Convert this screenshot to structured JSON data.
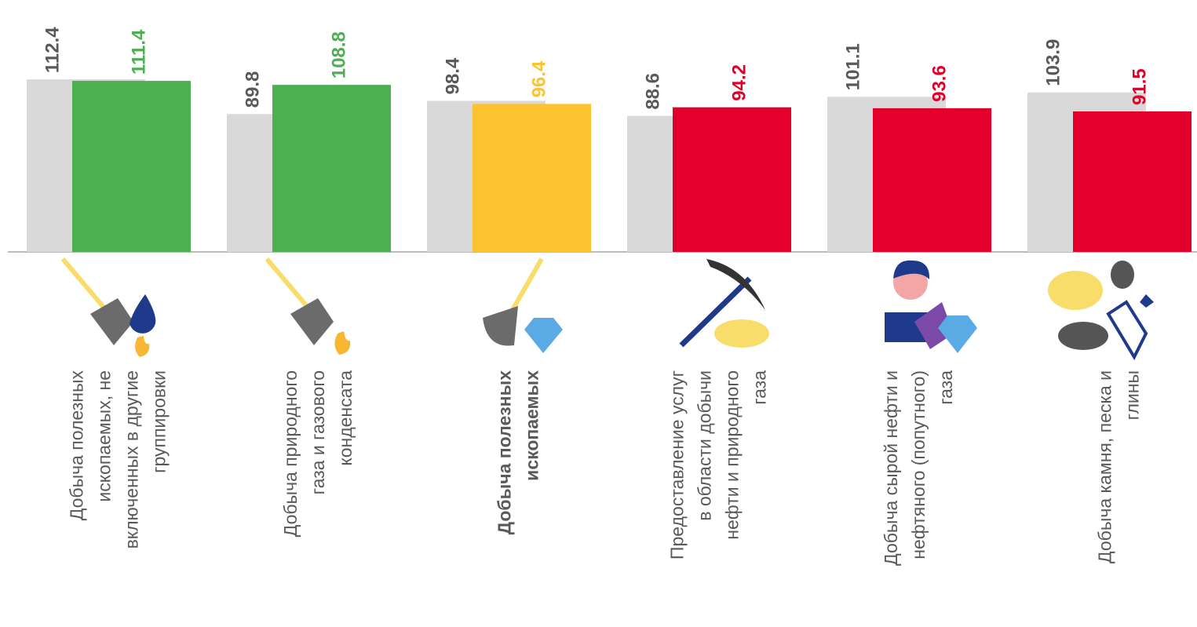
{
  "chart_data": {
    "type": "bar",
    "categories": [
      [
        "Добыча полезных",
        "ископаемых, не",
        "включенных в другие",
        "группировки"
      ],
      [
        "Добыча  природного",
        "газа и газового",
        "конденсата"
      ],
      [
        "Добыча полезных",
        "ископаемых"
      ],
      [
        "Предоставление услуг",
        "в области добычи",
        "нефти и природного",
        "газа"
      ],
      [
        "Добыча сырой нефти и",
        "нефтяного (попутного)",
        "газа"
      ],
      [
        "Добыча камня, песка и",
        "глины"
      ]
    ],
    "highlight_category": 2,
    "series": [
      {
        "color": "#d9d9d9",
        "label_color": "#595959",
        "values": [
          112.4,
          89.8,
          98.4,
          88.6,
          101.1,
          103.9
        ]
      },
      {
        "colors": [
          "#4caf50",
          "#4caf50",
          "#fdc230",
          "#e2002a",
          "#e2002a",
          "#e2002a"
        ],
        "values": [
          111.4,
          108.8,
          96.4,
          94.2,
          93.6,
          91.5
        ]
      }
    ],
    "ylim": [
      0,
      160
    ]
  }
}
